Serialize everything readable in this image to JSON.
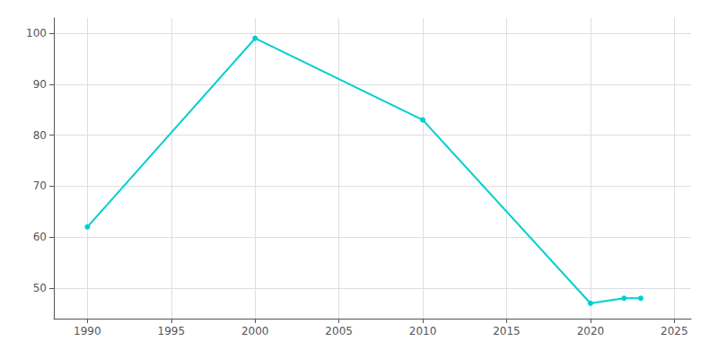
{
  "chart_data": {
    "type": "line",
    "x": [
      1990,
      2000,
      2010,
      2020,
      2022,
      2023
    ],
    "values": [
      62,
      99,
      83,
      47,
      48,
      48
    ],
    "color": "#00CED1",
    "marker": "circle",
    "xlim": [
      1988,
      2026
    ],
    "xticks": [
      1990,
      1995,
      2000,
      2005,
      2010,
      2015,
      2020,
      2025
    ],
    "ylim": [
      44,
      103
    ],
    "yticks": [
      50,
      60,
      70,
      80,
      90,
      100
    ],
    "grid": true
  }
}
